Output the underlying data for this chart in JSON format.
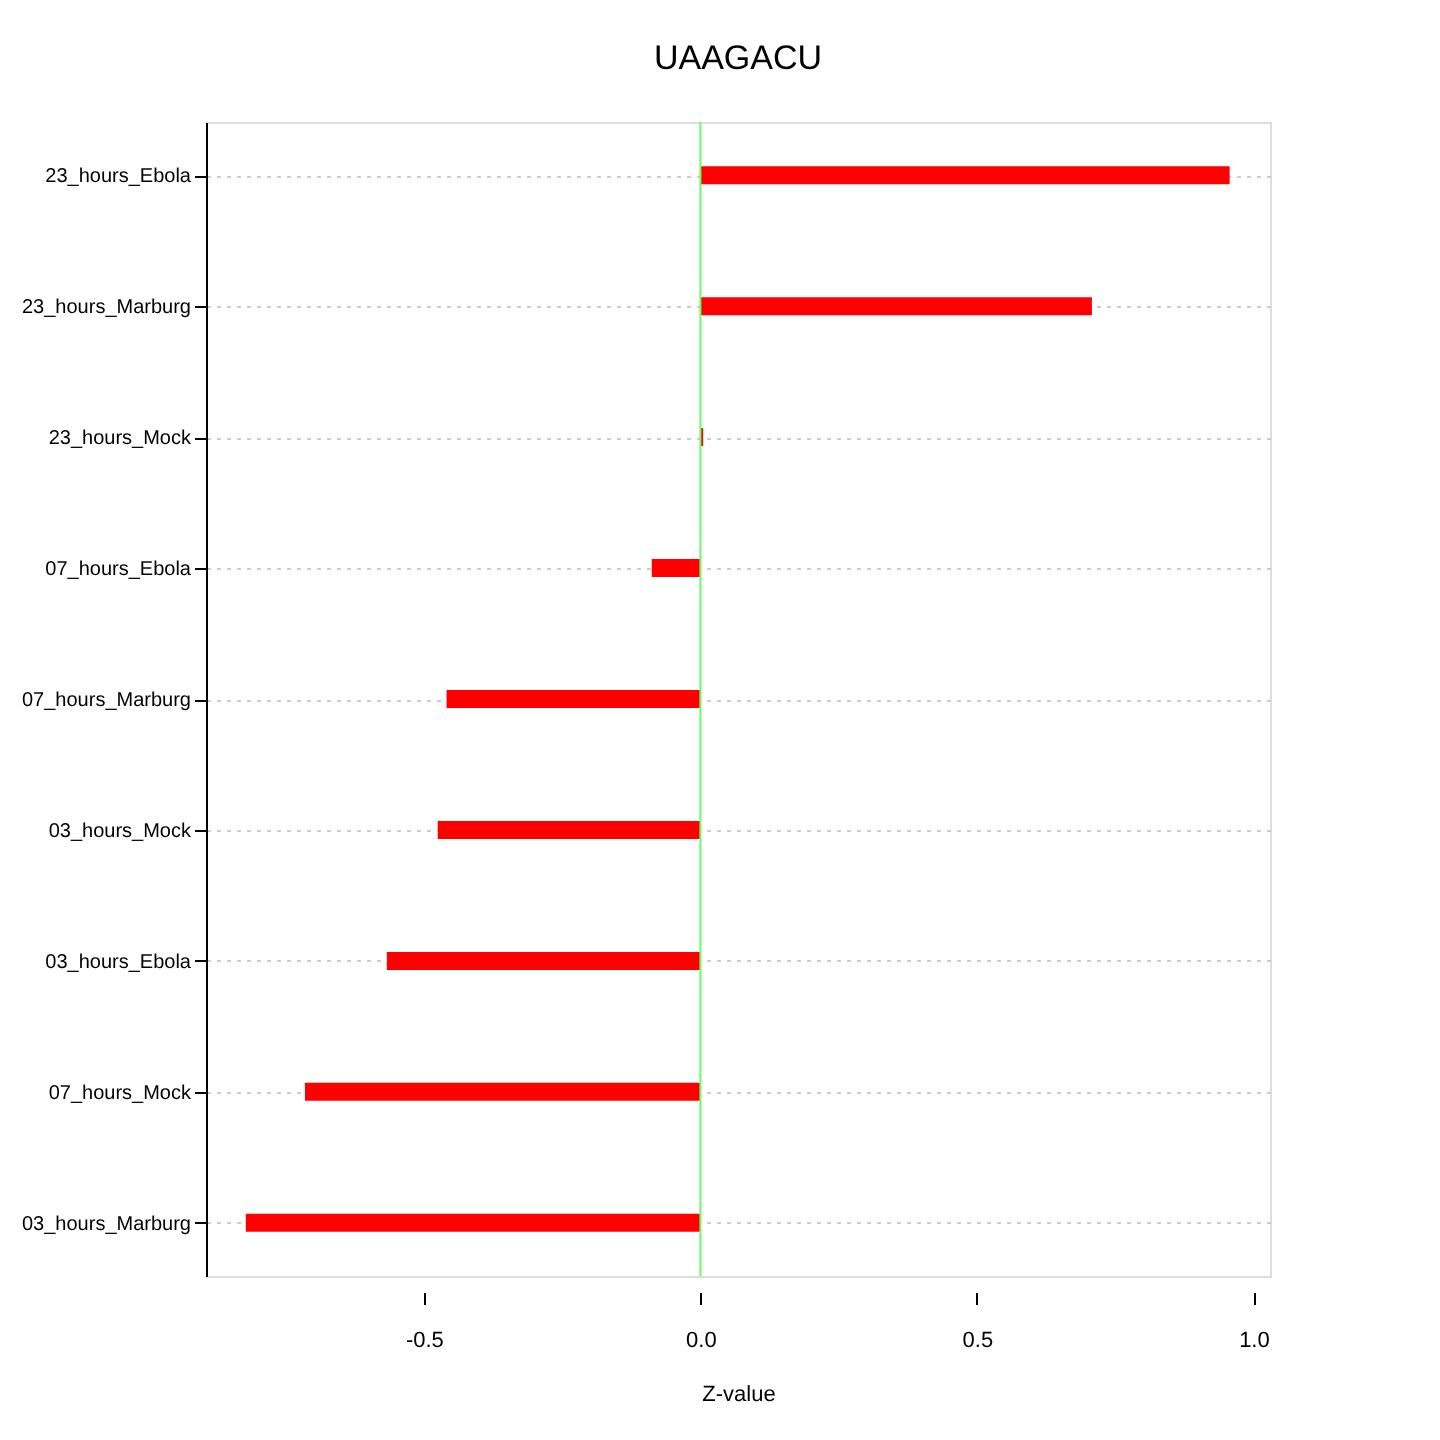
{
  "chart_data": {
    "type": "bar",
    "orientation": "horizontal",
    "title": "UAAGACU",
    "xlabel": "Z-value",
    "categories": [
      "23_hours_Ebola",
      "23_hours_Marburg",
      "23_hours_Mock",
      "07_hours_Ebola",
      "07_hours_Marburg",
      "03_hours_Mock",
      "03_hours_Ebola",
      "07_hours_Mock",
      "03_hours_Marburg"
    ],
    "values": [
      0.957,
      0.708,
      0.005,
      -0.088,
      -0.459,
      -0.475,
      -0.567,
      -0.715,
      -0.822
    ],
    "color": "#ff0000",
    "xlim": [
      -0.894,
      1.03
    ],
    "xticks": [
      -0.5,
      {
        "value": 0,
        "label": "0.0"
      },
      0.5,
      {
        "value": 1,
        "label": "1.0"
      }
    ],
    "grid": "y",
    "ref_lines": [
      {
        "axis": "x",
        "value": 0,
        "color": "#66ff66"
      }
    ]
  }
}
